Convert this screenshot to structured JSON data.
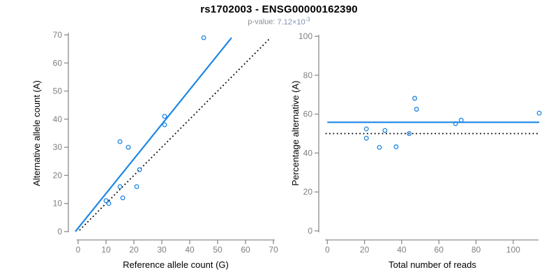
{
  "header": {
    "title": "rs1702003 - ENSG00000162390",
    "p_value_label": "p-value:",
    "p_value_mantissa": "7.12×10",
    "p_value_exponent": "-3"
  },
  "colors": {
    "accent_blue": "#1E86E5",
    "reference_black": "#000000",
    "axis_gray": "#8c8c8c",
    "tick_label_gray": "#7f7f7f",
    "subtitle_gray": "#8a8f94",
    "subtitle_value_blue": "#7d93b2"
  },
  "chart_data": [
    {
      "type": "scatter",
      "title": "",
      "xlabel": "Reference allele count (G)",
      "ylabel": "Alternative allele count (A)",
      "xlim": [
        0,
        70
      ],
      "ylim": [
        0,
        70
      ],
      "xticks": [
        0,
        10,
        20,
        30,
        40,
        50,
        60,
        70
      ],
      "yticks": [
        0,
        10,
        20,
        30,
        40,
        50,
        60,
        70
      ],
      "grid": false,
      "legend": false,
      "point_color": "#1E86E5",
      "points": [
        [
          10,
          11
        ],
        [
          11,
          10
        ],
        [
          15,
          16
        ],
        [
          16,
          12
        ],
        [
          21,
          16
        ],
        [
          22,
          22
        ],
        [
          15,
          32
        ],
        [
          18,
          30
        ],
        [
          31,
          38
        ],
        [
          31,
          41
        ],
        [
          45,
          69
        ]
      ],
      "lines": [
        {
          "name": "fit-line",
          "style": "solid",
          "color": "#1E86E5",
          "from": [
            -1,
            0
          ],
          "to": [
            55,
            69
          ]
        },
        {
          "name": "identity-line",
          "style": "dotted",
          "color": "#000000",
          "from": [
            0.5,
            0.5
          ],
          "to": [
            69,
            69
          ]
        }
      ]
    },
    {
      "type": "scatter",
      "title": "",
      "xlabel": "Total number of reads",
      "ylabel": "Percentage alternative (A)",
      "xlim": [
        0,
        114
      ],
      "ylim": [
        0,
        100
      ],
      "xticks": [
        0,
        20,
        40,
        60,
        80,
        100
      ],
      "yticks": [
        0,
        20,
        40,
        60,
        80,
        100
      ],
      "grid": false,
      "legend": false,
      "point_color": "#1E86E5",
      "points": [
        [
          21,
          52.4
        ],
        [
          21,
          47.6
        ],
        [
          28,
          42.9
        ],
        [
          31,
          51.6
        ],
        [
          37,
          43.2
        ],
        [
          44,
          50.0
        ],
        [
          47,
          68.1
        ],
        [
          48,
          62.5
        ],
        [
          69,
          55.1
        ],
        [
          72,
          56.9
        ],
        [
          114,
          60.5
        ]
      ],
      "lines": [
        {
          "name": "mean-line",
          "style": "solid",
          "color": "#1E86E5",
          "from": [
            0,
            55.8
          ],
          "to": [
            114,
            55.8
          ]
        },
        {
          "name": "reference-line",
          "style": "dotted",
          "color": "#000000",
          "from": [
            -1,
            50
          ],
          "to": [
            114.5,
            50
          ]
        }
      ]
    }
  ]
}
